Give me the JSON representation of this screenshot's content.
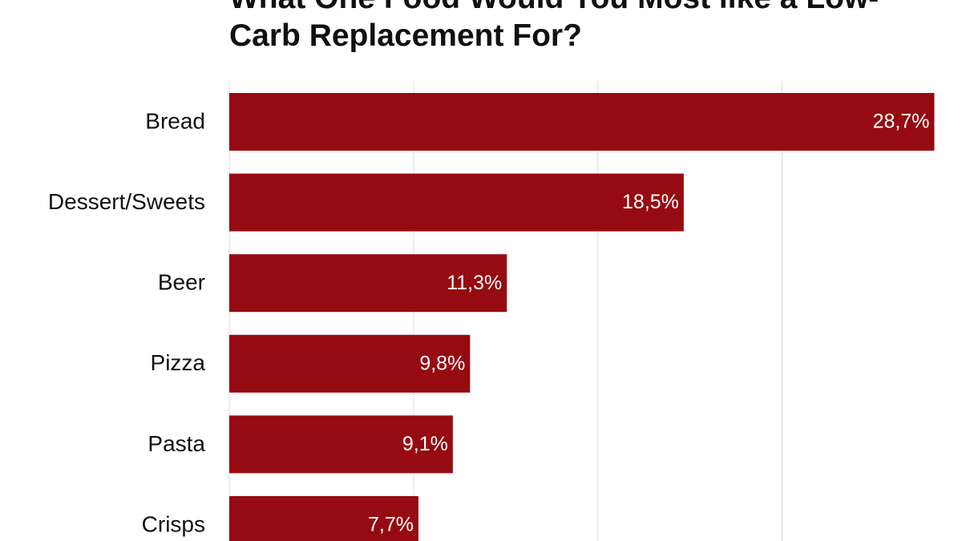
{
  "chart_data": {
    "type": "bar",
    "orientation": "horizontal",
    "title": "What One Food Would You Most like a Low-Carb Replacement For?",
    "categories": [
      "Bread",
      "Dessert/Sweets",
      "Beer",
      "Pizza",
      "Pasta",
      "Crisps"
    ],
    "values": [
      28.7,
      18.5,
      11.3,
      9.8,
      9.1,
      7.7
    ],
    "value_labels": [
      "28,7%",
      "18,5%",
      "11,3%",
      "9,8%",
      "9,1%",
      "7,7%"
    ],
    "color": "#960b11",
    "xlim": [
      0,
      29.5
    ],
    "xticks": [
      0,
      7.5,
      15,
      22.5
    ],
    "grid": true
  }
}
